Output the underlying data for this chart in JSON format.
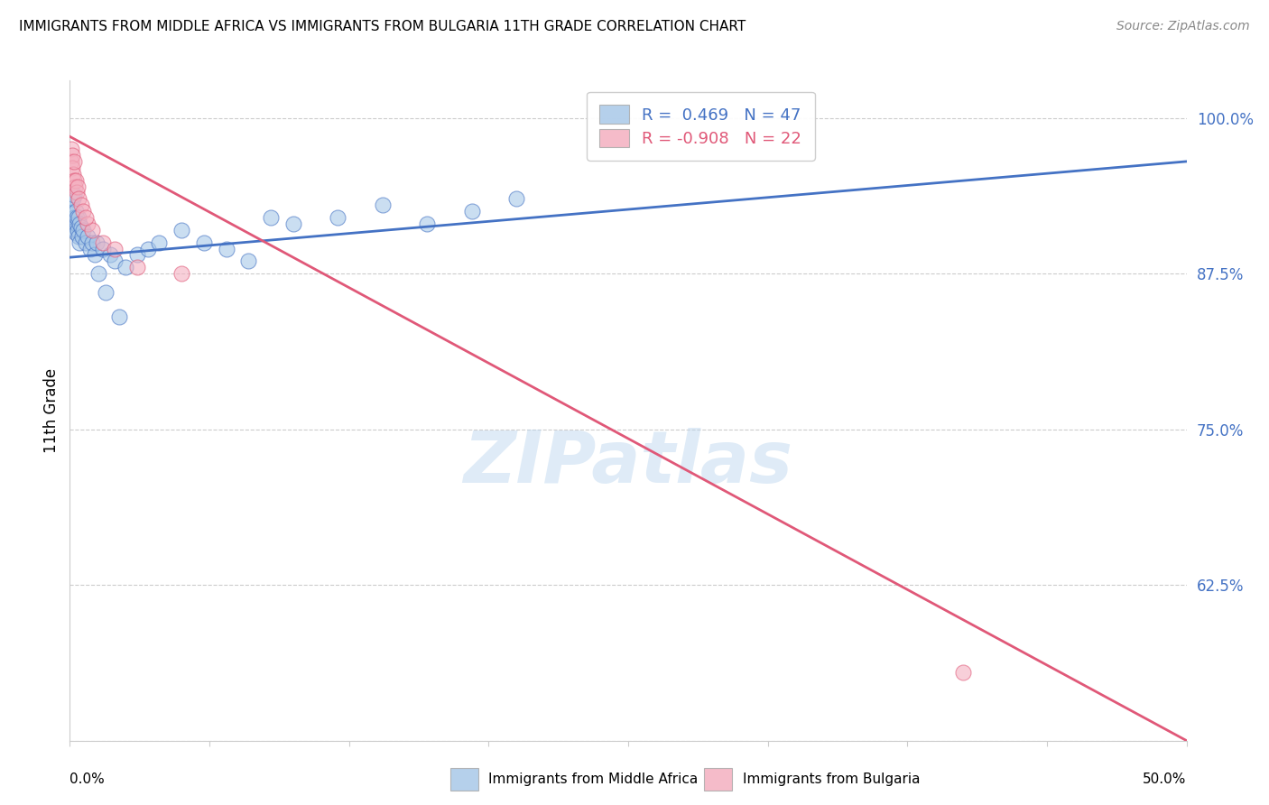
{
  "title": "IMMIGRANTS FROM MIDDLE AFRICA VS IMMIGRANTS FROM BULGARIA 11TH GRADE CORRELATION CHART",
  "source": "Source: ZipAtlas.com",
  "ylabel": "11th Grade",
  "y_ticks": [
    50.0,
    62.5,
    75.0,
    87.5,
    100.0
  ],
  "y_tick_labels": [
    "",
    "62.5%",
    "75.0%",
    "87.5%",
    "100.0%"
  ],
  "x_lim": [
    0.0,
    50.0
  ],
  "y_lim": [
    50.0,
    103.0
  ],
  "blue_R": 0.469,
  "blue_N": 47,
  "pink_R": -0.908,
  "pink_N": 22,
  "blue_color": "#a8c8e8",
  "pink_color": "#f4b0c0",
  "blue_line_color": "#4472c4",
  "pink_line_color": "#e05878",
  "legend_blue_label": "Immigrants from Middle Africa",
  "legend_pink_label": "Immigrants from Bulgaria",
  "watermark": "ZIPatlas",
  "blue_dots": [
    [
      0.05,
      92.5
    ],
    [
      0.08,
      93.0
    ],
    [
      0.1,
      94.0
    ],
    [
      0.12,
      91.5
    ],
    [
      0.15,
      93.5
    ],
    [
      0.18,
      92.0
    ],
    [
      0.2,
      93.8
    ],
    [
      0.22,
      91.0
    ],
    [
      0.25,
      92.5
    ],
    [
      0.28,
      90.8
    ],
    [
      0.3,
      91.5
    ],
    [
      0.32,
      92.0
    ],
    [
      0.35,
      91.0
    ],
    [
      0.38,
      90.5
    ],
    [
      0.4,
      92.0
    ],
    [
      0.42,
      91.5
    ],
    [
      0.45,
      90.0
    ],
    [
      0.5,
      91.2
    ],
    [
      0.55,
      90.5
    ],
    [
      0.6,
      91.0
    ],
    [
      0.7,
      90.0
    ],
    [
      0.8,
      90.5
    ],
    [
      0.9,
      89.5
    ],
    [
      1.0,
      90.0
    ],
    [
      1.1,
      89.0
    ],
    [
      1.2,
      90.0
    ],
    [
      1.5,
      89.5
    ],
    [
      1.8,
      89.0
    ],
    [
      2.0,
      88.5
    ],
    [
      2.5,
      88.0
    ],
    [
      3.0,
      89.0
    ],
    [
      3.5,
      89.5
    ],
    [
      4.0,
      90.0
    ],
    [
      5.0,
      91.0
    ],
    [
      6.0,
      90.0
    ],
    [
      7.0,
      89.5
    ],
    [
      8.0,
      88.5
    ],
    [
      9.0,
      92.0
    ],
    [
      10.0,
      91.5
    ],
    [
      12.0,
      92.0
    ],
    [
      14.0,
      93.0
    ],
    [
      16.0,
      91.5
    ],
    [
      18.0,
      92.5
    ],
    [
      20.0,
      93.5
    ],
    [
      1.3,
      87.5
    ],
    [
      1.6,
      86.0
    ],
    [
      2.2,
      84.0
    ]
  ],
  "pink_dots": [
    [
      0.05,
      97.5
    ],
    [
      0.08,
      96.5
    ],
    [
      0.1,
      97.0
    ],
    [
      0.12,
      96.0
    ],
    [
      0.15,
      95.5
    ],
    [
      0.18,
      95.0
    ],
    [
      0.2,
      96.5
    ],
    [
      0.22,
      94.5
    ],
    [
      0.25,
      95.0
    ],
    [
      0.3,
      94.0
    ],
    [
      0.35,
      94.5
    ],
    [
      0.4,
      93.5
    ],
    [
      0.5,
      93.0
    ],
    [
      0.6,
      92.5
    ],
    [
      0.8,
      91.5
    ],
    [
      1.0,
      91.0
    ],
    [
      1.5,
      90.0
    ],
    [
      2.0,
      89.5
    ],
    [
      3.0,
      88.0
    ],
    [
      5.0,
      87.5
    ],
    [
      40.0,
      55.5
    ],
    [
      0.7,
      92.0
    ]
  ],
  "blue_trendline_x": [
    0.0,
    50.0
  ],
  "blue_trendline_y": [
    88.8,
    96.5
  ],
  "pink_trendline_x": [
    0.0,
    50.0
  ],
  "pink_trendline_y": [
    98.5,
    50.0
  ]
}
